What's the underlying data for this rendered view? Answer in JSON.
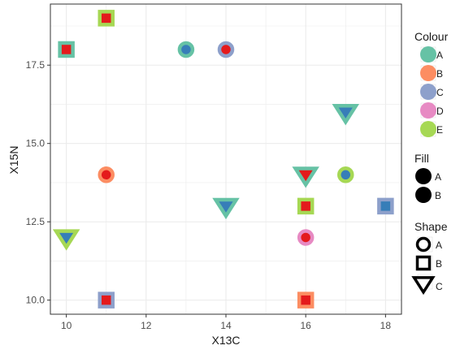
{
  "chart_data": {
    "type": "scatter",
    "xlabel": "X13C",
    "ylabel": "X15N",
    "xlim": [
      9.6,
      18.4
    ],
    "ylim": [
      9.55,
      19.45
    ],
    "xticks": [
      10,
      12,
      14,
      16,
      18
    ],
    "yticks": [
      10.0,
      12.5,
      15.0,
      17.5
    ],
    "ytick_labels": [
      "10.0",
      "12.5",
      "15.0",
      "17.5"
    ],
    "grid": true,
    "legend_position": "right",
    "colour_legend": {
      "title": "Colour",
      "entries": [
        {
          "label": "A",
          "color": "#66c2a5"
        },
        {
          "label": "B",
          "color": "#fc8d62"
        },
        {
          "label": "C",
          "color": "#8da0cb"
        },
        {
          "label": "D",
          "color": "#e78ac3"
        },
        {
          "label": "E",
          "color": "#a6d854"
        }
      ]
    },
    "fill_legend": {
      "title": "Fill",
      "entries": [
        {
          "label": "A",
          "color": "#e41a1c"
        },
        {
          "label": "B",
          "color": "#377eb8"
        }
      ]
    },
    "shape_legend": {
      "title": "Shape",
      "entries": [
        {
          "label": "A",
          "shape": "circle"
        },
        {
          "label": "B",
          "shape": "square"
        },
        {
          "label": "C",
          "shape": "triangle-down"
        }
      ]
    },
    "points": [
      {
        "x": 11,
        "y": 19.0,
        "colour": "E",
        "fill": "A",
        "shape": "B"
      },
      {
        "x": 10,
        "y": 18.0,
        "colour": "A",
        "fill": "A",
        "shape": "B"
      },
      {
        "x": 13,
        "y": 18.0,
        "colour": "A",
        "fill": "B",
        "shape": "A"
      },
      {
        "x": 14,
        "y": 18.0,
        "colour": "C",
        "fill": "A",
        "shape": "A"
      },
      {
        "x": 17,
        "y": 16.0,
        "colour": "A",
        "fill": "B",
        "shape": "C"
      },
      {
        "x": 11,
        "y": 14.0,
        "colour": "B",
        "fill": "A",
        "shape": "A"
      },
      {
        "x": 16,
        "y": 14.0,
        "colour": "A",
        "fill": "A",
        "shape": "C"
      },
      {
        "x": 17,
        "y": 14.0,
        "colour": "E",
        "fill": "B",
        "shape": "A"
      },
      {
        "x": 14,
        "y": 13.0,
        "colour": "A",
        "fill": "B",
        "shape": "C"
      },
      {
        "x": 16,
        "y": 13.0,
        "colour": "E",
        "fill": "A",
        "shape": "B"
      },
      {
        "x": 18,
        "y": 13.0,
        "colour": "C",
        "fill": "B",
        "shape": "B"
      },
      {
        "x": 10,
        "y": 12.0,
        "colour": "E",
        "fill": "B",
        "shape": "C"
      },
      {
        "x": 16,
        "y": 12.0,
        "colour": "D",
        "fill": "A",
        "shape": "A"
      },
      {
        "x": 11,
        "y": 10.0,
        "colour": "C",
        "fill": "A",
        "shape": "B"
      },
      {
        "x": 16,
        "y": 10.0,
        "colour": "B",
        "fill": "A",
        "shape": "B"
      }
    ]
  }
}
